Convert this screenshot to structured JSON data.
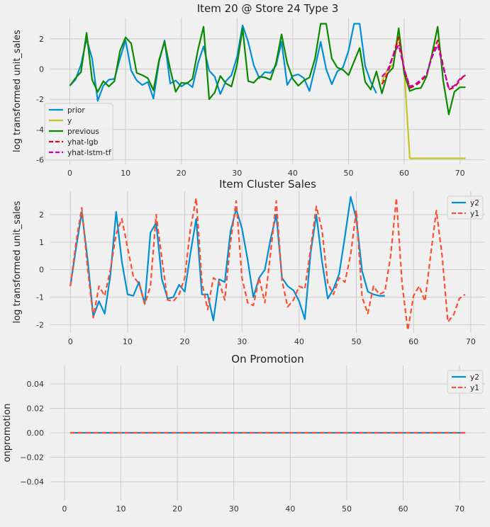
{
  "chart_data": [
    {
      "type": "line",
      "title": "Item 20 @ Store 24 Type 3",
      "xlabel": "",
      "ylabel": "log transformed unit_sales",
      "xlim": [
        -3.5,
        74.5
      ],
      "ylim": [
        -6.3,
        3.4
      ],
      "xticks": [
        0,
        10,
        20,
        30,
        40,
        50,
        60,
        70
      ],
      "yticks": [
        -6,
        -4,
        -2,
        0,
        2
      ],
      "grid": true,
      "legend": "lower-left",
      "series": [
        {
          "name": "prior",
          "color": "#008fd5",
          "dash": "solid",
          "x": [
            0,
            1,
            2,
            3,
            4,
            5,
            6,
            7,
            8,
            9,
            10,
            11,
            12,
            13,
            14,
            15,
            16,
            17,
            18,
            19,
            20,
            21,
            22,
            23,
            24,
            25,
            26,
            27,
            28,
            29,
            30,
            31,
            32,
            33,
            34,
            35,
            36,
            37,
            38,
            39,
            40,
            41,
            42,
            43,
            44,
            45,
            46,
            47,
            48,
            49,
            50,
            51,
            52,
            53,
            54,
            55
          ],
          "y": [
            -1.1,
            -0.7,
            0.3,
            2.0,
            0.7,
            -2.1,
            -1.1,
            -0.7,
            -0.65,
            0.7,
            1.9,
            -0.1,
            -0.75,
            -1.05,
            -0.85,
            -1.95,
            0.5,
            1.9,
            -0.95,
            -0.75,
            -1.15,
            -0.9,
            -1.2,
            0.4,
            1.5,
            -0.1,
            -0.5,
            -1.65,
            -0.8,
            -0.4,
            0.8,
            2.9,
            1.8,
            0.25,
            -0.6,
            -0.2,
            -0.25,
            0.25,
            1.8,
            -1.05,
            -0.45,
            -0.35,
            -0.6,
            -1.45,
            0.1,
            1.8,
            0.0,
            -1.0,
            -0.15,
            0.1,
            1.2,
            3.0,
            3.0,
            0.2,
            -0.85,
            -1.6
          ]
        },
        {
          "name": "y",
          "color": "#c7c21f",
          "dash": "solid",
          "x": [
            56,
            57,
            58,
            59,
            60,
            61,
            62,
            63,
            64,
            65,
            66,
            67,
            68,
            69,
            70,
            71
          ],
          "y": [
            -0.8,
            0.0,
            0.3,
            2.2,
            0.0,
            -5.9,
            -5.9,
            -5.9,
            -5.9,
            -5.9,
            -5.9,
            -5.9,
            -5.9,
            -5.9,
            -5.9,
            -5.9
          ]
        },
        {
          "name": "previous",
          "color": "#0b8a00",
          "dash": "solid",
          "x": [
            0,
            1,
            2,
            3,
            4,
            5,
            6,
            7,
            8,
            9,
            10,
            11,
            12,
            13,
            14,
            15,
            16,
            17,
            18,
            19,
            20,
            21,
            22,
            23,
            24,
            25,
            26,
            27,
            28,
            29,
            30,
            31,
            32,
            33,
            34,
            35,
            36,
            37,
            38,
            39,
            40,
            41,
            42,
            43,
            44,
            45,
            46,
            47,
            48,
            49,
            50,
            51,
            52,
            53,
            54,
            55,
            56,
            57,
            58,
            59,
            60,
            61,
            62,
            63,
            64,
            65,
            66,
            67,
            68,
            69,
            70,
            71
          ],
          "y": [
            -1.1,
            -0.6,
            -0.2,
            2.4,
            -0.7,
            -1.5,
            -0.8,
            -1.15,
            -0.8,
            1.2,
            2.1,
            1.7,
            -0.25,
            -0.4,
            -0.6,
            -1.4,
            0.6,
            1.8,
            0.0,
            -1.5,
            -0.9,
            -0.95,
            -0.65,
            1.3,
            2.8,
            -2.0,
            -1.55,
            -0.45,
            -0.95,
            -1.15,
            0.3,
            2.7,
            -0.8,
            -0.9,
            -0.5,
            -0.55,
            -0.7,
            0.4,
            2.3,
            0.4,
            -0.65,
            -1.1,
            -0.75,
            -0.55,
            0.7,
            3.0,
            3.0,
            0.7,
            0.1,
            -0.05,
            -0.4,
            0.5,
            1.4,
            -0.85,
            -1.35,
            -0.15,
            -1.6,
            -0.3,
            0.1,
            2.7,
            -0.3,
            -1.45,
            -1.3,
            -1.25,
            -0.5,
            1.0,
            2.8,
            -0.8,
            -3.0,
            -1.5,
            -1.2,
            -1.2
          ]
        },
        {
          "name": "yhat-lgb",
          "color": "#e8000b",
          "dash": "dashed",
          "x": [
            56,
            57,
            58,
            59,
            60,
            61,
            62,
            63,
            64,
            65,
            66,
            67,
            68,
            69,
            70,
            71
          ],
          "y": [
            -1.0,
            -0.3,
            0.9,
            2.1,
            0.0,
            -1.25,
            -1.1,
            -0.8,
            -0.4,
            0.9,
            1.9,
            0.2,
            -1.35,
            -1.2,
            -0.75,
            -0.3
          ]
        },
        {
          "name": "yhat-lstm-tf",
          "color": "#c400c4",
          "dash": "dashed",
          "x": [
            56,
            57,
            58,
            59,
            60,
            61,
            62,
            63,
            64,
            65,
            66,
            67,
            68,
            69,
            70,
            71
          ],
          "y": [
            -0.5,
            -0.1,
            0.9,
            1.6,
            0.0,
            -1.15,
            -1.0,
            -0.7,
            -0.35,
            0.8,
            1.6,
            0.1,
            -1.25,
            -1.1,
            -0.65,
            -0.4
          ]
        }
      ]
    },
    {
      "type": "line",
      "title": "Item Cluster Sales",
      "xlabel": "",
      "ylabel": "log transformed unit_sales",
      "xlim": [
        -3.5,
        72.5
      ],
      "ylim": [
        -2.3,
        2.85
      ],
      "xticks": [
        0,
        10,
        20,
        30,
        40,
        50,
        60,
        70
      ],
      "yticks": [
        -2,
        -1,
        0,
        1,
        2
      ],
      "grid": true,
      "legend": "top-right",
      "series": [
        {
          "name": "y2",
          "color": "#008fd5",
          "dash": "solid",
          "x": [
            0,
            1,
            2,
            3,
            4,
            5,
            6,
            7,
            8,
            9,
            10,
            11,
            12,
            13,
            14,
            15,
            16,
            17,
            18,
            19,
            20,
            21,
            22,
            23,
            24,
            25,
            26,
            27,
            28,
            29,
            30,
            31,
            32,
            33,
            34,
            35,
            36,
            37,
            38,
            39,
            40,
            41,
            42,
            43,
            44,
            45,
            46,
            47,
            48,
            49,
            50,
            51,
            52,
            53,
            54,
            55
          ],
          "y": [
            -0.6,
            0.8,
            2.1,
            0.4,
            -1.7,
            -1.15,
            -1.6,
            -0.2,
            2.1,
            0.3,
            -0.9,
            -0.95,
            -0.45,
            -1.25,
            1.35,
            1.7,
            -0.35,
            -1.05,
            -1.0,
            -0.55,
            -0.8,
            0.6,
            1.85,
            -0.9,
            -0.9,
            -1.85,
            -0.35,
            -0.45,
            1.4,
            2.2,
            1.5,
            0.35,
            -1.0,
            -0.3,
            0.0,
            1.1,
            2.0,
            -0.3,
            -0.6,
            -0.75,
            -1.15,
            -1.8,
            0.6,
            2.0,
            0.3,
            -1.05,
            -0.7,
            -0.15,
            1.2,
            2.65,
            1.85,
            -0.05,
            -0.8,
            -0.9,
            -0.95,
            -0.95
          ]
        },
        {
          "name": "y1",
          "color": "#fc4f30",
          "dash": "dashed",
          "x": [
            0,
            1,
            2,
            3,
            4,
            5,
            6,
            7,
            8,
            9,
            10,
            11,
            12,
            13,
            14,
            15,
            16,
            17,
            18,
            19,
            20,
            21,
            22,
            23,
            24,
            25,
            26,
            27,
            28,
            29,
            30,
            31,
            32,
            33,
            34,
            35,
            36,
            37,
            38,
            39,
            40,
            41,
            42,
            43,
            44,
            45,
            46,
            47,
            48,
            49,
            50,
            51,
            52,
            53,
            54,
            55,
            56,
            57,
            58,
            59,
            60,
            61,
            62,
            63,
            64,
            65,
            66,
            67,
            68,
            69
          ],
          "y": [
            -0.6,
            1.0,
            2.25,
            0.1,
            -1.75,
            -0.6,
            -0.95,
            0.0,
            1.3,
            1.85,
            0.8,
            -0.25,
            -0.5,
            -1.25,
            -0.6,
            2.0,
            0.4,
            -1.1,
            -1.15,
            -0.9,
            -0.3,
            1.5,
            2.6,
            -0.45,
            -1.45,
            -0.3,
            -0.45,
            -1.1,
            1.0,
            2.5,
            -0.3,
            -1.2,
            -1.3,
            -0.3,
            -1.2,
            0.6,
            2.5,
            -0.4,
            -1.35,
            -1.1,
            -0.6,
            -0.7,
            0.75,
            2.3,
            1.45,
            -0.5,
            -0.9,
            -0.3,
            -0.45,
            0.55,
            2.15,
            -1.0,
            -1.6,
            -0.6,
            -0.9,
            -0.8,
            0.5,
            2.6,
            -0.5,
            -2.2,
            -0.95,
            -0.6,
            -1.15,
            0.55,
            2.15,
            0.5,
            -1.9,
            -1.65,
            -1.05,
            -0.9
          ]
        }
      ]
    },
    {
      "type": "line",
      "title": "On Promotion",
      "xlabel": "",
      "ylabel": "onpromotion",
      "xlim": [
        -2.5,
        74.5
      ],
      "ylim": [
        -0.055,
        0.055
      ],
      "xticks": [
        0,
        10,
        20,
        30,
        40,
        50,
        60,
        70
      ],
      "yticks": [
        -0.04,
        -0.02,
        0.0,
        0.02,
        0.04
      ],
      "ytick_labels": [
        "−0.04",
        "−0.02",
        "0.00",
        "0.02",
        "0.04"
      ],
      "grid": true,
      "legend": "top-right",
      "series": [
        {
          "name": "y2",
          "color": "#008fd5",
          "dash": "solid",
          "x": [
            1,
            71
          ],
          "y": [
            0,
            0
          ]
        },
        {
          "name": "y1",
          "color": "#fc4f30",
          "dash": "dashed",
          "x": [
            1,
            71
          ],
          "y": [
            0,
            0
          ]
        }
      ]
    }
  ]
}
